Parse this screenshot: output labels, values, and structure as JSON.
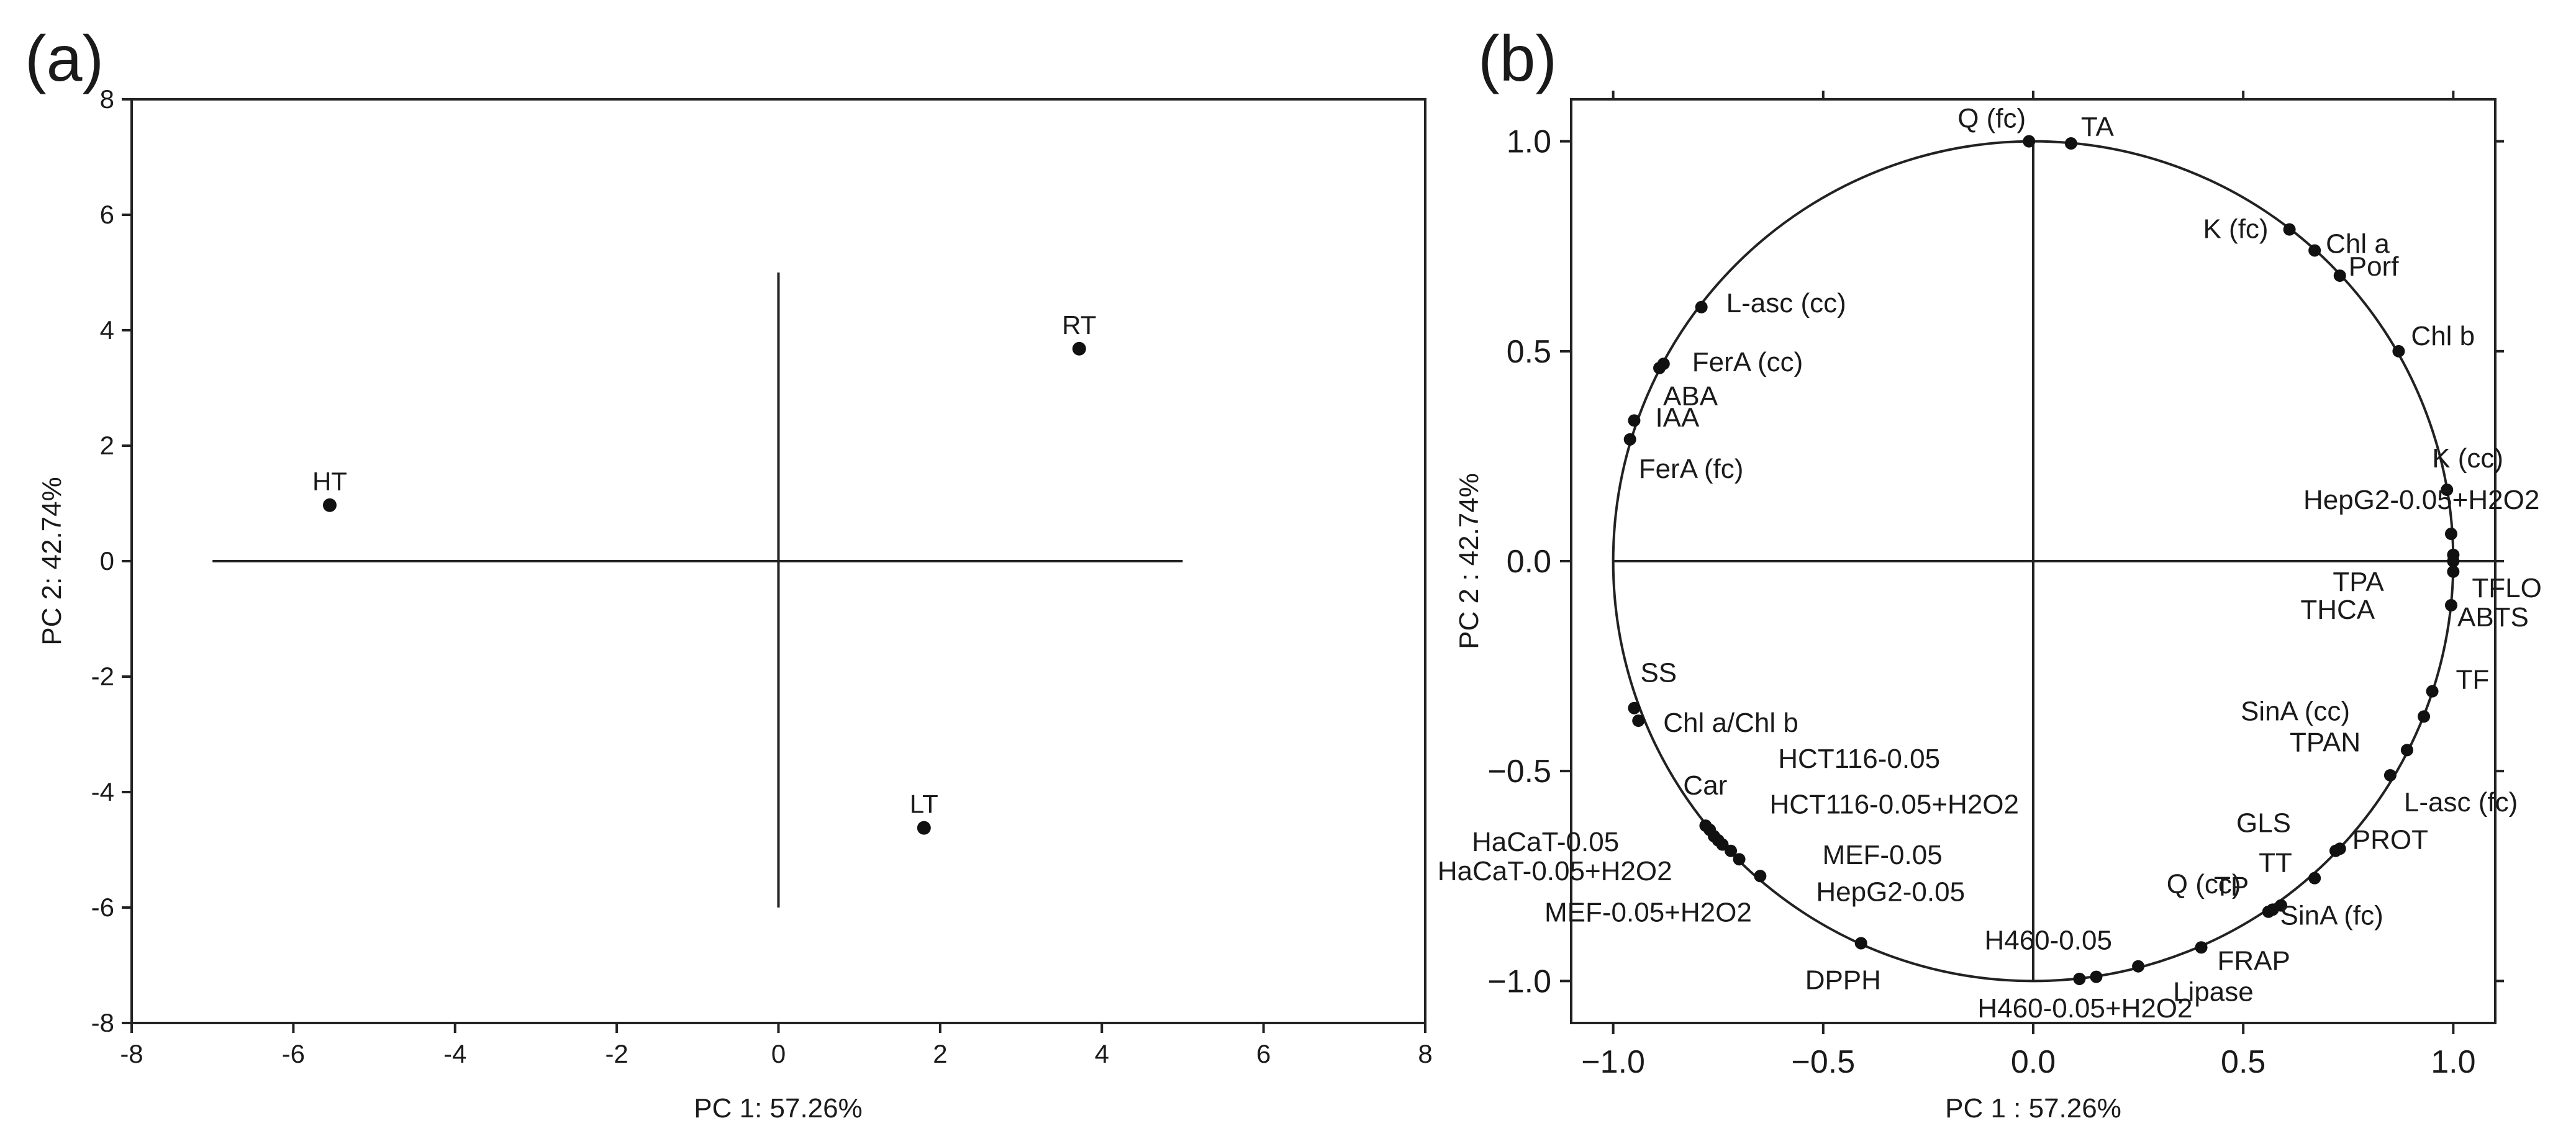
{
  "chart_data": [
    {
      "type": "scatter",
      "panel_label": "(a)",
      "xlabel": "PC 1: 57.26%",
      "ylabel": "PC 2: 42.74%",
      "xlim": [
        -8,
        8
      ],
      "ylim": [
        -8,
        8
      ],
      "xticks": [
        "-8",
        "-6",
        "-4",
        "-2",
        "0",
        "2",
        "4",
        "6",
        "8"
      ],
      "yticks": [
        "-8",
        "-6",
        "-4",
        "-2",
        "0",
        "2",
        "4",
        "6",
        "8"
      ],
      "grid": false,
      "axis_lines": {
        "h": [
          -7,
          5,
          0
        ],
        "v": [
          0,
          -6,
          5
        ]
      },
      "points": [
        {
          "label": "HT",
          "x": -5.55,
          "y": 0.97
        },
        {
          "label": "RT",
          "x": 3.72,
          "y": 3.68
        },
        {
          "label": "LT",
          "x": 1.8,
          "y": -4.62
        }
      ]
    },
    {
      "type": "scatter",
      "panel_label": "(b)",
      "xlabel": "PC 1 : 57.26%",
      "ylabel": "PC 2 : 42.74%",
      "xlim": [
        -1.1,
        1.1
      ],
      "ylim": [
        -1.1,
        1.1
      ],
      "xticks": [
        "−1.0",
        "−0.5",
        "0.0",
        "0.5",
        "1.0"
      ],
      "yticks": [
        "−1.0",
        "−0.5",
        "0.0",
        "0.5",
        "1.0"
      ],
      "tick_values": [
        -1.0,
        -0.5,
        0.0,
        0.5,
        1.0
      ],
      "unit_circle": true,
      "grid": false,
      "points": [
        {
          "label": "Q (fc)",
          "x": -0.01,
          "y": 1.0
        },
        {
          "label": "TA",
          "x": 0.09,
          "y": 0.995
        },
        {
          "label": "K (fc)",
          "x": 0.61,
          "y": 0.79
        },
        {
          "label": "Chl a",
          "x": 0.67,
          "y": 0.74
        },
        {
          "label": "Porf",
          "x": 0.73,
          "y": 0.68
        },
        {
          "label": "Chl b",
          "x": 0.87,
          "y": 0.5
        },
        {
          "label": "K (cc)",
          "x": 0.985,
          "y": 0.17
        },
        {
          "label": "HepG2-0.05+H2O2",
          "x": 0.995,
          "y": 0.065
        },
        {
          "label": "TPA",
          "x": 1.0,
          "y": 0.015
        },
        {
          "label": "TFLO",
          "x": 1.0,
          "y": 0.0
        },
        {
          "label": "THCA",
          "x": 1.0,
          "y": -0.025
        },
        {
          "label": "ABTS",
          "x": 0.995,
          "y": -0.105
        },
        {
          "label": "TF",
          "x": 0.95,
          "y": -0.31
        },
        {
          "label": "TPAN",
          "x": 0.93,
          "y": -0.37
        },
        {
          "label": "SinA (cc)",
          "x": 0.89,
          "y": -0.45
        },
        {
          "label": "L-asc (fc)",
          "x": 0.85,
          "y": -0.51
        },
        {
          "label": "PROT",
          "x": 0.73,
          "y": -0.685
        },
        {
          "label": "GLS",
          "x": 0.72,
          "y": -0.69
        },
        {
          "label": "TT",
          "x": 0.67,
          "y": -0.755
        },
        {
          "label": "TP",
          "x": 0.59,
          "y": -0.82
        },
        {
          "label": "SinA (fc)",
          "x": 0.57,
          "y": -0.83
        },
        {
          "label": "Q (cc)",
          "x": 0.56,
          "y": -0.835
        },
        {
          "label": "FRAP",
          "x": 0.4,
          "y": -0.92
        },
        {
          "label": "Lipase",
          "x": 0.25,
          "y": -0.965
        },
        {
          "label": "H460-0.05",
          "x": 0.15,
          "y": -0.99
        },
        {
          "label": "H460-0.05+H2O2",
          "x": 0.11,
          "y": -0.995
        },
        {
          "label": "DPPH",
          "x": -0.41,
          "y": -0.91
        },
        {
          "label": "HepG2-0.05",
          "x": -0.65,
          "y": -0.75
        },
        {
          "label": "MEF-0.05",
          "x": -0.7,
          "y": -0.71
        },
        {
          "label": "MEF-0.05+H2O2",
          "x": -0.72,
          "y": -0.69
        },
        {
          "label": "HCT116-0.05+H2O2",
          "x": -0.74,
          "y": -0.675
        },
        {
          "label": "HaCaT-0.05+H2O2",
          "x": -0.75,
          "y": -0.665
        },
        {
          "label": "HaCaT-0.05",
          "x": -0.76,
          "y": -0.655
        },
        {
          "label": "HCT116-0.05",
          "x": -0.77,
          "y": -0.64
        },
        {
          "label": "Car",
          "x": -0.78,
          "y": -0.63
        },
        {
          "label": "Chl a/Chl b",
          "x": -0.94,
          "y": -0.38
        },
        {
          "label": "SS",
          "x": -0.95,
          "y": -0.35
        },
        {
          "label": "FerA (fc)",
          "x": -0.96,
          "y": 0.29
        },
        {
          "label": "IAA",
          "x": -0.95,
          "y": 0.335
        },
        {
          "label": "ABA",
          "x": -0.89,
          "y": 0.46
        },
        {
          "label": "FerA (cc)",
          "x": -0.88,
          "y": 0.47
        },
        {
          "label": "L-asc (cc)",
          "x": -0.79,
          "y": 0.605
        }
      ]
    }
  ]
}
